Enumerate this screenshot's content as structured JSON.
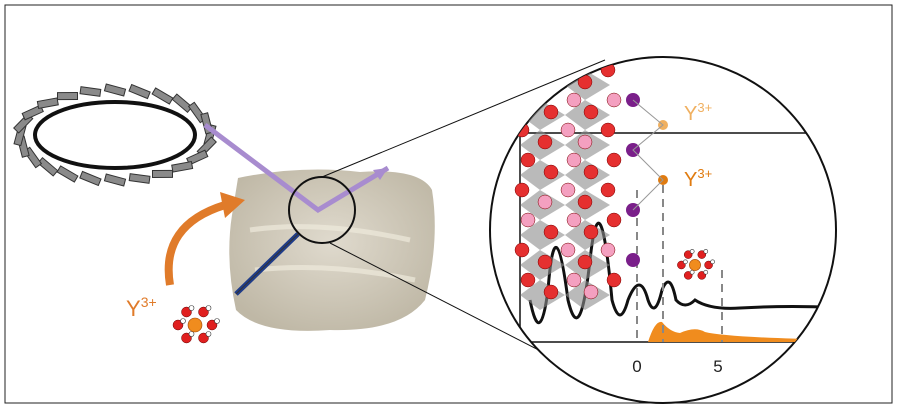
{
  "labels": {
    "ion_left": {
      "base": "Y",
      "sup": "3+"
    },
    "ion_upper": {
      "base": "Y",
      "sup": "3+"
    },
    "ion_lower": {
      "base": "Y",
      "sup": "3+"
    }
  },
  "axis": {
    "ticks": [
      "0",
      "5"
    ]
  }
}
